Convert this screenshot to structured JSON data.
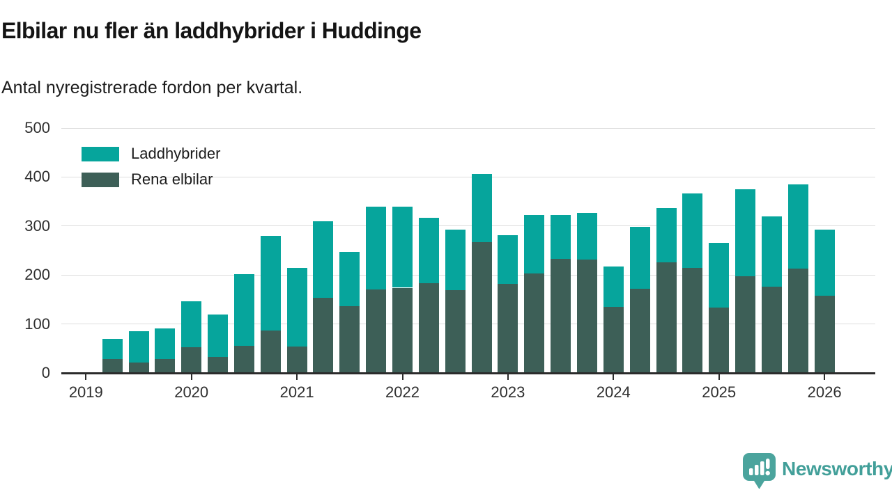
{
  "header": {
    "title": "Elbilar nu fler än laddhybrider i Huddinge",
    "subtitle": "Antal nyregistrerade fordon per kvartal."
  },
  "chart_data": {
    "type": "bar",
    "stacked": true,
    "title": "Elbilar nu fler än laddhybrider i Huddinge",
    "subtitle": "Antal nyregistrerade fordon per kvartal.",
    "xlabel": "",
    "ylabel": "",
    "ylim": [
      0,
      500
    ],
    "yticks": [
      0,
      100,
      200,
      300,
      400,
      500
    ],
    "xticks": [
      "2019",
      "2020",
      "2021",
      "2022",
      "2023",
      "2024",
      "2025",
      "2026"
    ],
    "grid": true,
    "legend_position": "top-left",
    "categories": [
      "2019 K2",
      "2019 K3",
      "2019 K4",
      "2020 K1",
      "2020 K2",
      "2020 K3",
      "2020 K4",
      "2021 K1",
      "2021 K2",
      "2021 K3",
      "2021 K4",
      "2022 K1",
      "2022 K2",
      "2022 K3",
      "2022 K4",
      "2023 K1",
      "2023 K2",
      "2023 K3",
      "2023 K4",
      "2024 K1",
      "2024 K2",
      "2024 K3",
      "2024 K4",
      "2025 K1",
      "2025 K2",
      "2025 K3",
      "2025 K4",
      "2026 K1"
    ],
    "series": [
      {
        "name": "Rena elbilar",
        "color": "#3d5f57",
        "stack_position": "bottom",
        "values": [
          29,
          22,
          28,
          53,
          32,
          55,
          86,
          54,
          154,
          137,
          170,
          174,
          183,
          169,
          267,
          182,
          203,
          233,
          231,
          135,
          172,
          226,
          214,
          133,
          198,
          176,
          213,
          157
        ]
      },
      {
        "name": "Laddhybrider",
        "color": "#06a59c",
        "stack_position": "top",
        "values": [
          41,
          63,
          63,
          93,
          88,
          146,
          194,
          161,
          156,
          110,
          169,
          166,
          134,
          123,
          139,
          99,
          119,
          89,
          95,
          83,
          126,
          111,
          152,
          133,
          177,
          144,
          172,
          135
        ]
      }
    ],
    "legend": [
      {
        "label": "Laddhybrider",
        "color": "#06a59c"
      },
      {
        "label": "Rena elbilar",
        "color": "#3d5f57"
      }
    ]
  },
  "colors": {
    "laddhybrider": "#06a59c",
    "rena_elbilar": "#3d5f57",
    "gridline": "#dcdcdc",
    "axis": "#2b2b2b",
    "tick_text": "#2f2f2f",
    "brand": "#429f99"
  },
  "footer": {
    "brand": "Newsworthy",
    "logo_icon": "newsworthy-speech-bubble-chart-icon"
  }
}
